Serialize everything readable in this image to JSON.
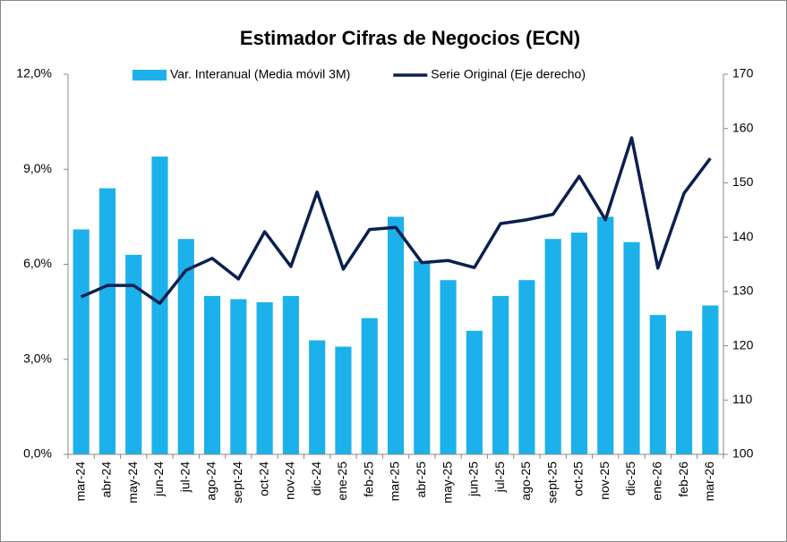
{
  "chart_data": {
    "type": "bar",
    "title": "Estimador Cifras de Negocios (ECN)",
    "categories": [
      "mar-24",
      "abr-24",
      "may-24",
      "jun-24",
      "jul-24",
      "ago-24",
      "sept-24",
      "oct-24",
      "nov-24",
      "dic-24",
      "ene-25",
      "feb-25",
      "mar-25",
      "abr-25",
      "may-25",
      "jun-25",
      "jul-25",
      "ago-25",
      "sept-25",
      "oct-25",
      "nov-25",
      "dic-25",
      "ene-26",
      "feb-26",
      "mar-26"
    ],
    "series": [
      {
        "name": "Var. Interanual (Media móvil 3M)",
        "type": "bar",
        "color": "#1cb1ea",
        "values": [
          7.1,
          8.4,
          6.3,
          9.4,
          6.8,
          5.0,
          4.9,
          4.8,
          5.0,
          3.6,
          3.4,
          4.3,
          7.5,
          6.1,
          5.5,
          3.9,
          5.0,
          5.5,
          6.8,
          7.0,
          7.5,
          6.7,
          4.4,
          3.9,
          4.7
        ]
      },
      {
        "name": "Serie Original (Eje derecho)",
        "type": "line",
        "axis": "y2",
        "color": "#0c1f4f",
        "values": [
          129.0,
          131.1,
          131.1,
          127.8,
          133.9,
          136.1,
          132.3,
          141.0,
          134.6,
          148.3,
          134.1,
          141.4,
          141.8,
          135.3,
          135.7,
          134.4,
          142.5,
          143.2,
          144.2,
          151.2,
          143.2,
          158.3,
          134.3,
          148.1,
          154.5
        ]
      }
    ],
    "ylim": [
      0,
      12
    ],
    "yticks": [
      {
        "value": 0,
        "label": "0,0%"
      },
      {
        "value": 3,
        "label": "3,0%"
      },
      {
        "value": 6,
        "label": "6,0%"
      },
      {
        "value": 9,
        "label": "9,0%"
      },
      {
        "value": 12,
        "label": "12,0%"
      }
    ],
    "y2lim": [
      100,
      170
    ],
    "y2ticks": [
      100,
      110,
      120,
      130,
      140,
      150,
      160,
      170
    ]
  }
}
